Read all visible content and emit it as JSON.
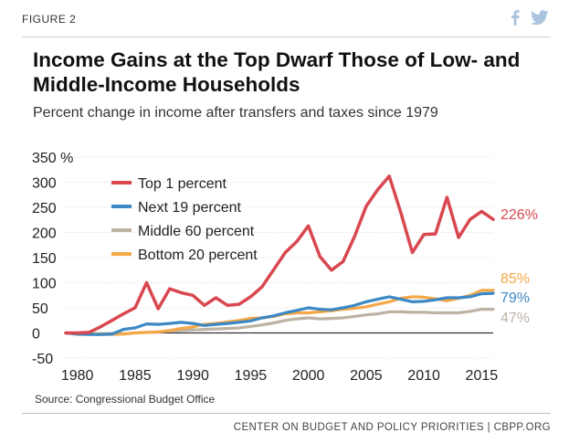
{
  "header": {
    "figure_label": "FIGURE 2",
    "icons": [
      "facebook-icon",
      "twitter-icon"
    ],
    "icon_color": "#a9c4dc"
  },
  "title": "Income Gains at the Top Dwarf Those of Low- and Middle-Income Households",
  "subtitle": "Percent change in income after transfers and taxes since 1979",
  "source": "Source: Congressional Budget Office",
  "footer": "CENTER ON BUDGET AND POLICY PRIORITIES | CBPP.ORG",
  "chart_data": {
    "type": "line",
    "title": "",
    "xlabel": "",
    "ylabel": "",
    "x_range": [
      1979,
      2016
    ],
    "xticks": [
      1980,
      1985,
      1990,
      1995,
      2000,
      2005,
      2010,
      2015
    ],
    "ylim": [
      -50,
      350
    ],
    "yticks": [
      -50,
      0,
      50,
      100,
      150,
      200,
      250,
      300,
      350
    ],
    "ytick_labels": [
      "-50",
      "0",
      "50",
      "100",
      "150",
      "200",
      "250",
      "300",
      "350 %"
    ],
    "grid": true,
    "legend_position": "top-left",
    "x": [
      1979,
      1980,
      1981,
      1982,
      1983,
      1984,
      1985,
      1986,
      1987,
      1988,
      1989,
      1990,
      1991,
      1992,
      1993,
      1994,
      1995,
      1996,
      1997,
      1998,
      1999,
      2000,
      2001,
      2002,
      2003,
      2004,
      2005,
      2006,
      2007,
      2008,
      2009,
      2010,
      2011,
      2012,
      2013,
      2014,
      2015,
      2016
    ],
    "series": [
      {
        "name": "Top 1 percent",
        "color": "#d9474f",
        "end_label": "226%",
        "values": [
          0,
          0,
          1,
          12,
          25,
          38,
          50,
          100,
          48,
          88,
          80,
          75,
          55,
          70,
          55,
          57,
          72,
          92,
          126,
          160,
          182,
          213,
          152,
          125,
          142,
          192,
          252,
          285,
          312,
          240,
          160,
          196,
          197,
          270,
          190,
          226,
          242,
          226
        ]
      },
      {
        "name": "Next 19 percent",
        "color": "#3c88c4",
        "end_label": "79%",
        "values": [
          0,
          -2,
          -3,
          -3,
          -2,
          7,
          10,
          18,
          17,
          19,
          21,
          19,
          15,
          17,
          19,
          21,
          24,
          30,
          34,
          40,
          45,
          50,
          47,
          46,
          50,
          55,
          62,
          67,
          72,
          67,
          62,
          63,
          66,
          70,
          70,
          72,
          78,
          79
        ]
      },
      {
        "name": "Middle 60 percent",
        "color": "#bdb2a3",
        "end_label": "47%",
        "values": [
          0,
          -3,
          -3,
          -3,
          -3,
          -2,
          0,
          1,
          2,
          4,
          5,
          6,
          7,
          8,
          9,
          10,
          13,
          16,
          20,
          25,
          28,
          30,
          28,
          29,
          30,
          33,
          36,
          38,
          42,
          42,
          41,
          41,
          40,
          40,
          40,
          43,
          47,
          47
        ]
      },
      {
        "name": "Bottom 20 percent",
        "color": "#f5a846",
        "end_label": "85%",
        "values": [
          0,
          -1,
          -2,
          -2,
          -2,
          -2,
          0,
          1,
          2,
          5,
          9,
          12,
          17,
          19,
          22,
          25,
          29,
          30,
          33,
          38,
          40,
          40,
          42,
          44,
          47,
          49,
          52,
          57,
          62,
          69,
          72,
          71,
          68,
          64,
          69,
          75,
          85,
          85
        ]
      }
    ]
  }
}
